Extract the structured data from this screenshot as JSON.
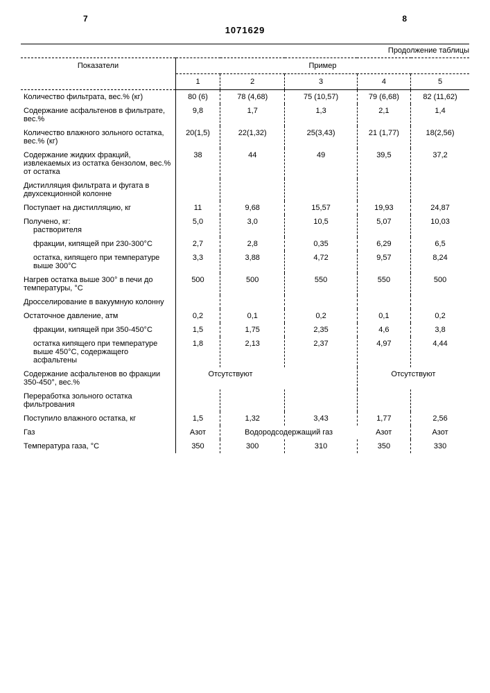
{
  "pageLeft": "7",
  "pageRight": "8",
  "docNumber": "1071629",
  "continuation": "Продолжение таблицы",
  "headers": {
    "param": "Показатели",
    "group": "Пример",
    "cols": [
      "1",
      "2",
      "3",
      "4",
      "5"
    ]
  },
  "absent": "Отсутствуют",
  "rows": {
    "r1": {
      "label": "Количество фильтрата, вес.% (кг)",
      "v": [
        "80 (6)",
        "78 (4,68)",
        "75 (10,57)",
        "79 (6,68)",
        "82 (11,62)"
      ]
    },
    "r2": {
      "label": "Содержание асфальтенов в фильтрате, вес.%",
      "v": [
        "9,8",
        "1,7",
        "1,3",
        "2,1",
        "1,4"
      ]
    },
    "r3": {
      "label": "Количество влажного золь­ного остатка, вес.% (кг)",
      "v": [
        "20(1,5)",
        "22(1,32)",
        "25(3,43)",
        "21 (1,77)",
        "18(2,56)"
      ]
    },
    "r4": {
      "label": "Содержание жидких фракций, извлекаемых из остатка бензолом, вес.% от остатка",
      "v": [
        "38",
        "44",
        "49",
        "39,5",
        "37,2"
      ]
    },
    "r5": {
      "label": "Дистилляция фильтрата и фугата в двухсекционной колонне",
      "v": [
        "",
        "",
        "",
        "",
        ""
      ]
    },
    "r6": {
      "label": "Поступает на дистилляцию, кг",
      "v": [
        "11",
        "9,68",
        "15,57",
        "19,93",
        "24,87"
      ]
    },
    "r7": {
      "label": "Получено, кг:",
      "sub": "растворителя",
      "v": [
        "5,0",
        "3,0",
        "10,5",
        "5,07",
        "10,03"
      ]
    },
    "r8": {
      "label": "фракции, кипящей при 230-300°С",
      "v": [
        "2,7",
        "2,8",
        "0,35",
        "6,29",
        "6,5"
      ]
    },
    "r9": {
      "label": "остатка, кипящего при температуре выше 300°С",
      "v": [
        "3,3",
        "3,88",
        "4,72",
        "9,57",
        "8,24"
      ]
    },
    "r10": {
      "label": "Нагрев остатка выше 300° в печи до температуры, °С",
      "v": [
        "500",
        "500",
        "550",
        "550",
        "500"
      ]
    },
    "r11": {
      "label": "Дросселирование в вакуум­ную колонну",
      "v": [
        "",
        "",
        "",
        "",
        ""
      ]
    },
    "r12": {
      "label": "Остаточное давление, атм",
      "v": [
        "0,2",
        "0,1",
        "0,2",
        "0,1",
        "0,2"
      ]
    },
    "r13": {
      "label": "фракции, кипящей при 350-450°С",
      "v": [
        "1,5",
        "1,75",
        "2,35",
        "4,6",
        "3,8"
      ]
    },
    "r14": {
      "label": "остатка кипящего при температуре выше 450°С, со­держащего асфальтены",
      "v": [
        "1,8",
        "2,13",
        "2,37",
        "4,97",
        "4,44"
      ]
    },
    "r15": {
      "label": "Содержание асфальтенов во фракции 350-450°, вес.%"
    },
    "r16": {
      "label": "Переработка зольного остат­ка фильтрования",
      "v": [
        "",
        "",
        "",
        "",
        ""
      ]
    },
    "r17": {
      "label": "Поступило влажного остатка, кг",
      "v": [
        "1,5",
        "1,32",
        "3,43",
        "1,77",
        "2,56"
      ]
    },
    "r18": {
      "label": "Газ",
      "v": [
        "Азот",
        "Водородсодержа­щий газ",
        "",
        "Азот",
        "Азот"
      ]
    },
    "r19": {
      "label": "Температура газа, °С",
      "v": [
        "350",
        "300",
        "310",
        "350",
        "330"
      ]
    }
  }
}
